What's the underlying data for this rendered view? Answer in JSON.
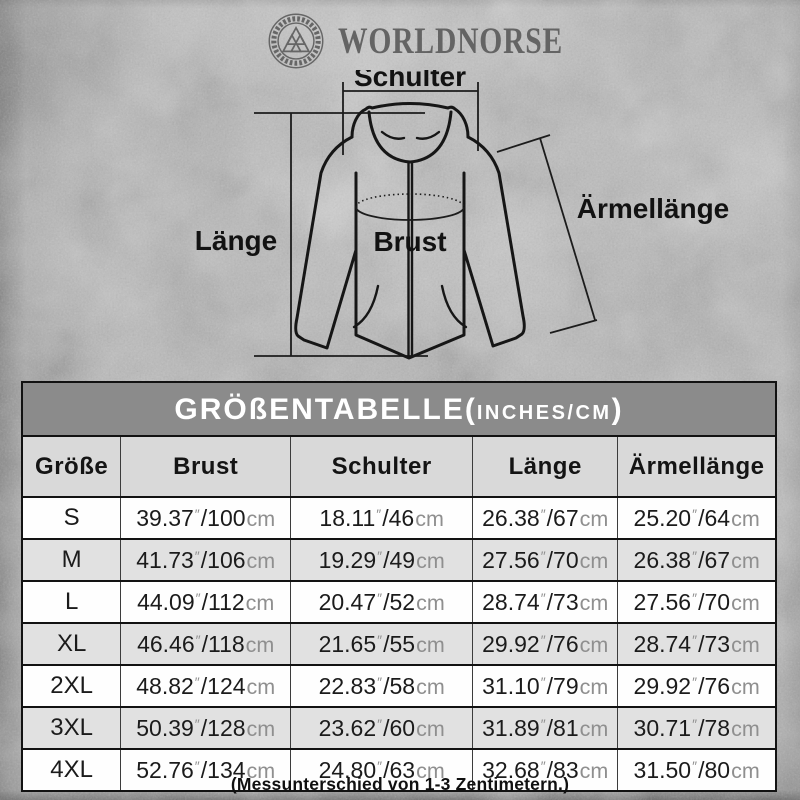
{
  "brand": {
    "name": "WORLDNORSE",
    "logo_icon": "valknut-circle-emblem",
    "logo_color": "#666666"
  },
  "diagram": {
    "schulter_label": "Schulter",
    "laenge_label": "Länge",
    "brust_label": "Brust",
    "aermellaenge_label": "Ärmellänge"
  },
  "table": {
    "title_prefix": "GRÖßENTABELLE(",
    "title_unit": "INCHES/CM",
    "title_suffix": ")",
    "columns": [
      "Größe",
      "Brust",
      "Schulter",
      "Länge",
      "Ärmellänge"
    ],
    "unit_inch_mark": "″",
    "unit_cm": "cm",
    "rows": [
      {
        "size": "S",
        "values": [
          {
            "in": "39.37",
            "cm": "100"
          },
          {
            "in": "18.11",
            "cm": "46"
          },
          {
            "in": "26.38",
            "cm": "67"
          },
          {
            "in": "25.20",
            "cm": "64"
          }
        ]
      },
      {
        "size": "M",
        "values": [
          {
            "in": "41.73",
            "cm": "106"
          },
          {
            "in": "19.29",
            "cm": "49"
          },
          {
            "in": "27.56",
            "cm": "70"
          },
          {
            "in": "26.38",
            "cm": "67"
          }
        ]
      },
      {
        "size": "L",
        "values": [
          {
            "in": "44.09",
            "cm": "112"
          },
          {
            "in": "20.47",
            "cm": "52"
          },
          {
            "in": "28.74",
            "cm": "73"
          },
          {
            "in": "27.56",
            "cm": "70"
          }
        ]
      },
      {
        "size": "XL",
        "values": [
          {
            "in": "46.46",
            "cm": "118"
          },
          {
            "in": "21.65",
            "cm": "55"
          },
          {
            "in": "29.92",
            "cm": "76"
          },
          {
            "in": "28.74",
            "cm": "73"
          }
        ]
      },
      {
        "size": "2XL",
        "values": [
          {
            "in": "48.82",
            "cm": "124"
          },
          {
            "in": "22.83",
            "cm": "58"
          },
          {
            "in": "31.10",
            "cm": "79"
          },
          {
            "in": "29.92",
            "cm": "76"
          }
        ]
      },
      {
        "size": "3XL",
        "values": [
          {
            "in": "50.39",
            "cm": "128"
          },
          {
            "in": "23.62",
            "cm": "60"
          },
          {
            "in": "31.89",
            "cm": "81"
          },
          {
            "in": "30.71",
            "cm": "78"
          }
        ]
      },
      {
        "size": "4XL",
        "values": [
          {
            "in": "52.76",
            "cm": "134"
          },
          {
            "in": "24.80",
            "cm": "63"
          },
          {
            "in": "32.68",
            "cm": "83"
          },
          {
            "in": "31.50",
            "cm": "80"
          }
        ]
      }
    ]
  },
  "footer": {
    "note": "(Messunterschied von 1-3 Zentimetern.)"
  },
  "colors": {
    "page_bg": "#b5b5b5",
    "title_bar_bg": "#8b8b8b",
    "header_row_bg": "#d9d9d9",
    "row_bg": "#fefefe",
    "row_alt_bg": "#e1e1e1",
    "border": "#121212",
    "muted_text": "#8f8f8f",
    "brand_gray": "#646464"
  }
}
